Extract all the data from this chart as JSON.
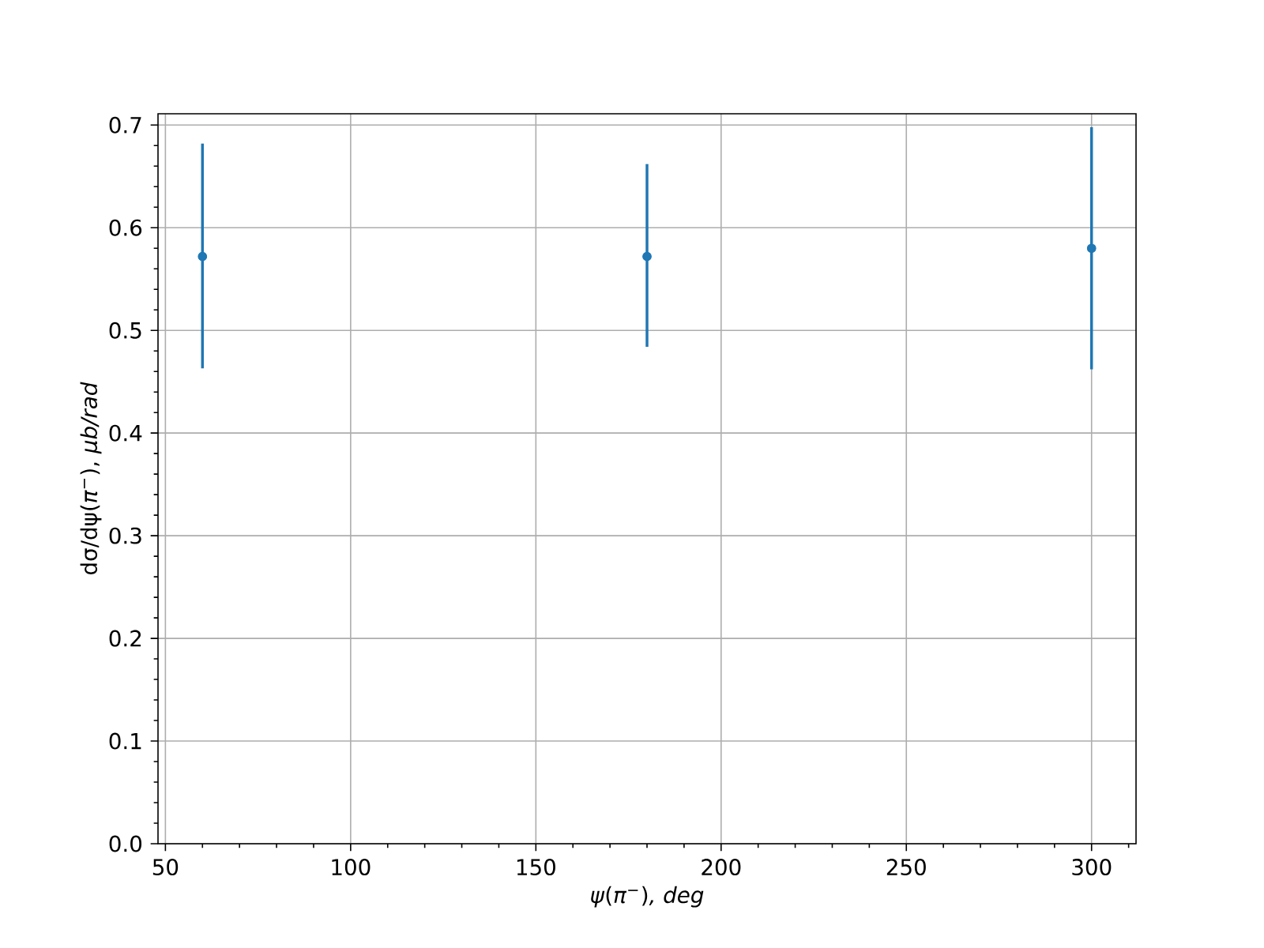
{
  "chart_data": {
    "type": "scatter",
    "xlabel": "*ψ*(*π*$^{−}$)*, deg*",
    "ylabel": "dσ/dψ(*π*$^{−}$), *μb/rad*",
    "x": [
      60,
      180,
      300
    ],
    "values": [
      0.572,
      0.572,
      0.58
    ],
    "errors": [
      [
        0.463,
        0.682
      ],
      [
        0.484,
        0.662
      ],
      [
        0.462,
        0.698
      ]
    ],
    "color": "#1f77b4",
    "marker": "circle",
    "xlim": [
      48,
      312
    ],
    "ylim": [
      0,
      0.711
    ],
    "xticks": [
      50,
      100,
      150,
      200,
      250,
      300,
      {
        "value": 60,
        "label": null
      },
      {
        "value": 70,
        "label": null
      },
      {
        "value": 80,
        "label": null
      },
      {
        "value": 90,
        "label": null
      },
      {
        "value": 110,
        "label": null
      },
      {
        "value": 120,
        "label": null
      },
      {
        "value": 130,
        "label": null
      },
      {
        "value": 140,
        "label": null
      },
      {
        "value": 160,
        "label": null
      },
      {
        "value": 170,
        "label": null
      },
      {
        "value": 180,
        "label": null
      },
      {
        "value": 190,
        "label": null
      },
      {
        "value": 210,
        "label": null
      },
      {
        "value": 220,
        "label": null
      },
      {
        "value": 230,
        "label": null
      },
      {
        "value": 240,
        "label": null
      },
      {
        "value": 260,
        "label": null
      },
      {
        "value": 270,
        "label": null
      },
      {
        "value": 280,
        "label": null
      },
      {
        "value": 290,
        "label": null
      },
      {
        "value": 310,
        "label": null
      }
    ],
    "yticks": [
      {
        "value": 0,
        "label": "0.0"
      },
      0.1,
      0.2,
      0.3,
      0.4,
      0.5,
      0.6,
      0.7,
      {
        "value": 0.02,
        "label": null
      },
      {
        "value": 0.04,
        "label": null
      },
      {
        "value": 0.06,
        "label": null
      },
      {
        "value": 0.08,
        "label": null
      },
      {
        "value": 0.12,
        "label": null
      },
      {
        "value": 0.14,
        "label": null
      },
      {
        "value": 0.16,
        "label": null
      },
      {
        "value": 0.18,
        "label": null
      },
      {
        "value": 0.22,
        "label": null
      },
      {
        "value": 0.24,
        "label": null
      },
      {
        "value": 0.26,
        "label": null
      },
      {
        "value": 0.28,
        "label": null
      },
      {
        "value": 0.32,
        "label": null
      },
      {
        "value": 0.34,
        "label": null
      },
      {
        "value": 0.36,
        "label": null
      },
      {
        "value": 0.38,
        "label": null
      },
      {
        "value": 0.42,
        "label": null
      },
      {
        "value": 0.44,
        "label": null
      },
      {
        "value": 0.46,
        "label": null
      },
      {
        "value": 0.48,
        "label": null
      },
      {
        "value": 0.52,
        "label": null
      },
      {
        "value": 0.54,
        "label": null
      },
      {
        "value": 0.56,
        "label": null
      },
      {
        "value": 0.58,
        "label": null
      },
      {
        "value": 0.62,
        "label": null
      },
      {
        "value": 0.64,
        "label": null
      },
      {
        "value": 0.66,
        "label": null
      },
      {
        "value": 0.68,
        "label": null
      }
    ],
    "grid": true
  }
}
